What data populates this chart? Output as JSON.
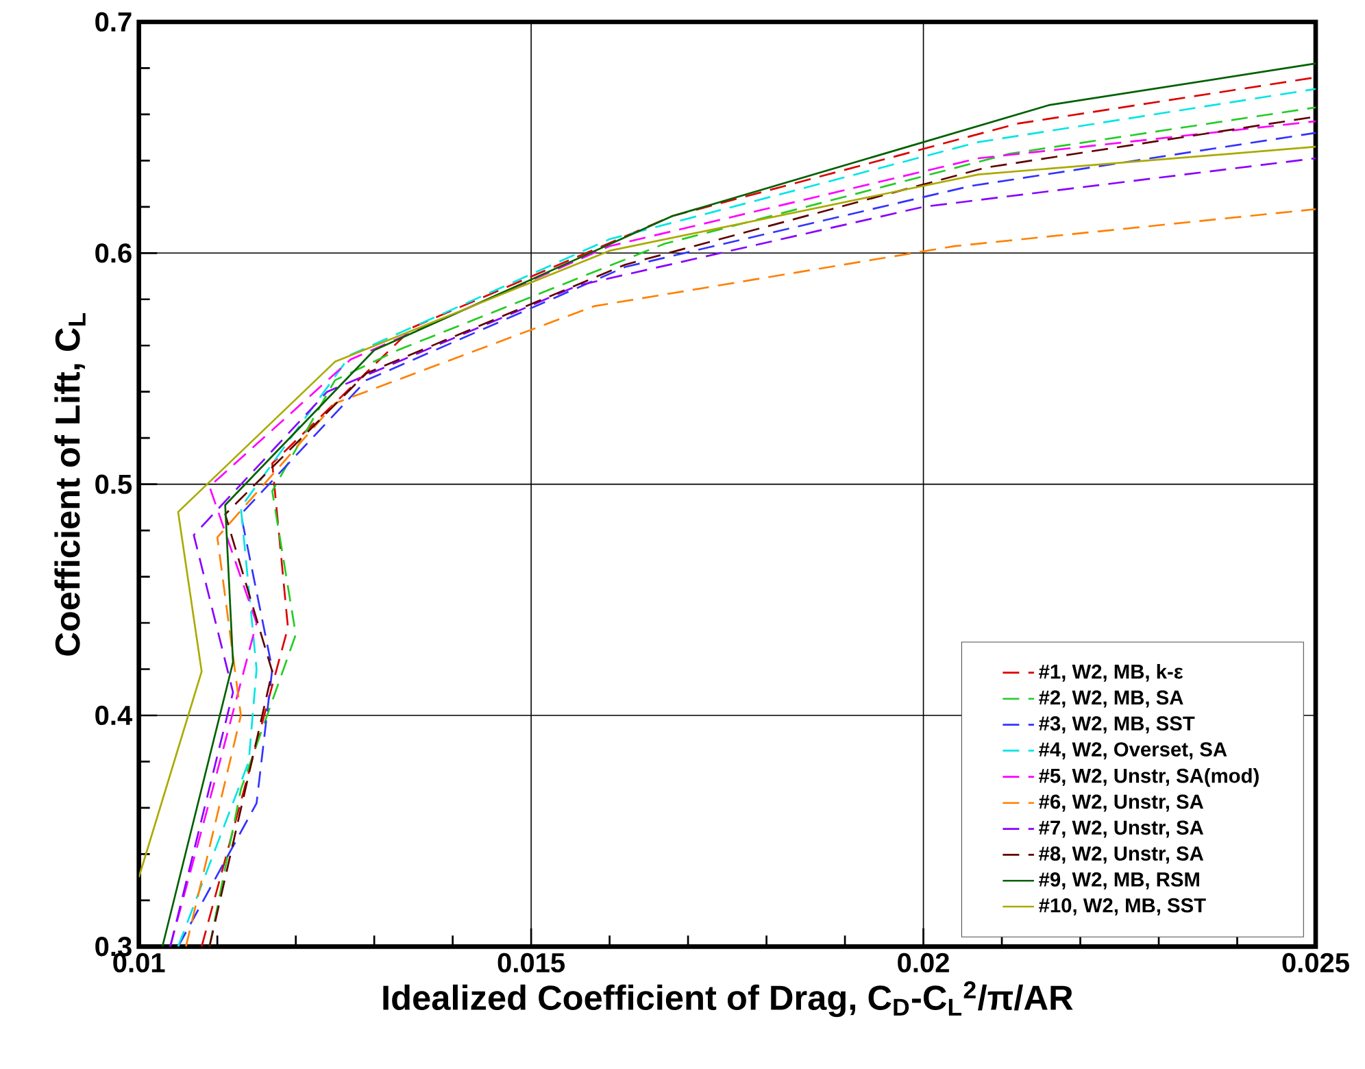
{
  "chart_data": {
    "type": "line",
    "xlabel": "Idealized Coefficient of Drag, C$_{D}$-C$_{L}$$^{2}$/π/AR",
    "ylabel": "Coefficient of Lift, C$_{L}$",
    "xlim": [
      0.01,
      0.025
    ],
    "ylim": [
      0.3,
      0.7
    ],
    "xticks": [
      0.01,
      0.015,
      0.02,
      0.025
    ],
    "yticks": [
      0.3,
      0.4,
      0.5,
      0.6,
      0.7
    ],
    "grid": true,
    "legend": "bottom right",
    "series": [
      {
        "name": "#1, W2, MB, k-ε",
        "color": "#dd0000",
        "line_style": "dashed",
        "x": [
          0.0108,
          0.0119,
          0.0117,
          0.0135,
          0.0168,
          0.0212,
          0.025
        ],
        "values": [
          0.3,
          0.438,
          0.509,
          0.568,
          0.616,
          0.656,
          0.676
        ]
      },
      {
        "name": "#2, W2, MB, SA",
        "color": "#22cc22",
        "line_style": "dashed",
        "x": [
          0.0109,
          0.0113,
          0.012,
          0.0117,
          0.0125,
          0.0133,
          0.0167,
          0.0211,
          0.025
        ],
        "values": [
          0.3,
          0.368,
          0.435,
          0.497,
          0.545,
          0.558,
          0.604,
          0.643,
          0.663
        ]
      },
      {
        "name": "#3, W2, MB, SST",
        "color": "#3333ff",
        "line_style": "dashed",
        "x": [
          0.0105,
          0.0115,
          0.0117,
          0.0113,
          0.0129,
          0.0162,
          0.0206,
          0.025
        ],
        "values": [
          0.3,
          0.362,
          0.42,
          0.487,
          0.545,
          0.594,
          0.629,
          0.652
        ]
      },
      {
        "name": "#4, W2, Overset, SA",
        "color": "#00e5e5",
        "line_style": "dashed",
        "x": [
          0.0105,
          0.0114,
          0.0115,
          0.0113,
          0.0127,
          0.016,
          0.0207,
          0.025
        ],
        "values": [
          0.3,
          0.38,
          0.42,
          0.49,
          0.556,
          0.606,
          0.648,
          0.671
        ]
      },
      {
        "name": "#5, W2, Unstr, SA(mod)",
        "color": "#ff00ff",
        "line_style": "dashed",
        "x": [
          0.0104,
          0.0109,
          0.0115,
          0.0109,
          0.0127,
          0.016,
          0.0207,
          0.025
        ],
        "values": [
          0.3,
          0.363,
          0.44,
          0.499,
          0.554,
          0.603,
          0.641,
          0.657
        ]
      },
      {
        "name": "#6, W2, Unstr, SA",
        "color": "#ff8000",
        "line_style": "dashed",
        "x": [
          0.0106,
          0.0113,
          0.011,
          0.0125,
          0.0158,
          0.0204,
          0.025
        ],
        "values": [
          0.3,
          0.4,
          0.477,
          0.535,
          0.577,
          0.603,
          0.619
        ]
      },
      {
        "name": "#7, W2, Unstr, SA",
        "color": "#8800ff",
        "line_style": "dashed",
        "x": [
          0.0104,
          0.0112,
          0.0107,
          0.0124,
          0.0156,
          0.02,
          0.025
        ],
        "values": [
          0.3,
          0.41,
          0.478,
          0.54,
          0.586,
          0.62,
          0.641
        ]
      },
      {
        "name": "#8, W2, Unstr, SA",
        "color": "#600000",
        "line_style": "dashed",
        "x": [
          0.0109,
          0.0117,
          0.0111,
          0.0129,
          0.0162,
          0.0208,
          0.025
        ],
        "values": [
          0.3,
          0.419,
          0.487,
          0.548,
          0.595,
          0.637,
          0.659
        ]
      },
      {
        "name": "#9, W2, MB, RSM",
        "color": "#006000",
        "line_style": "solid",
        "x": [
          0.0103,
          0.0112,
          0.0111,
          0.013,
          0.0168,
          0.0216,
          0.025
        ],
        "values": [
          0.3,
          0.423,
          0.491,
          0.558,
          0.616,
          0.664,
          0.682
        ]
      },
      {
        "name": "#10, W2, MB, SST",
        "color": "#aaaa00",
        "line_style": "solid",
        "x": [
          0.01,
          0.0108,
          0.0105,
          0.0125,
          0.016,
          0.0207,
          0.025
        ],
        "values": [
          0.33,
          0.419,
          0.488,
          0.553,
          0.601,
          0.634,
          0.646
        ]
      }
    ]
  }
}
